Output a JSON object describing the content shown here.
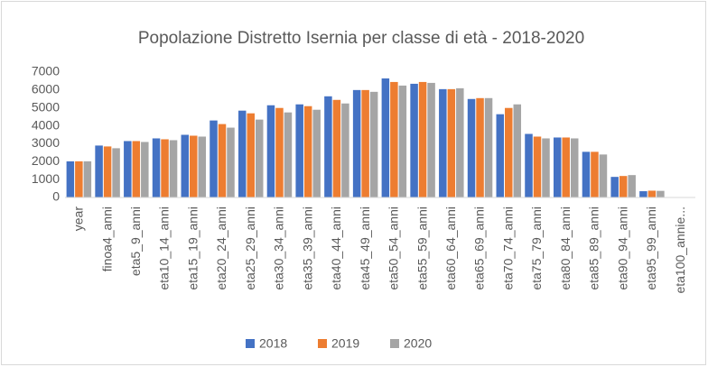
{
  "chart_data": {
    "type": "bar",
    "title": "Popolazione Distretto Isernia per classe di età - 2018-2020",
    "categories": [
      "year",
      "finoa4_anni",
      "eta5_9_anni",
      "eta10_14_anni",
      "eta15_19_anni",
      "eta20_24_anni",
      "eta25_29_anni",
      "eta30_34_anni",
      "eta35_39_anni",
      "eta40_44_anni",
      "eta45_49_anni",
      "eta50_54_anni",
      "eta55_59_anni",
      "eta60_64_anni",
      "eta65_69_anni",
      "eta70_74_anni",
      "eta75_79_anni",
      "eta80_84_anni",
      "eta85_89_anni",
      "eta90_94_anni",
      "eta95_99_anni",
      "eta100_annie..."
    ],
    "series": [
      {
        "name": "2018",
        "color": "#4472c4",
        "values": [
          2018,
          2900,
          3150,
          3300,
          3500,
          4300,
          4850,
          5150,
          5200,
          5650,
          6000,
          6650,
          6350,
          6050,
          5500,
          4650,
          3550,
          3350,
          2550,
          1150,
          350,
          20
        ]
      },
      {
        "name": "2019",
        "color": "#ed7d31",
        "values": [
          2019,
          2850,
          3150,
          3250,
          3450,
          4100,
          4700,
          5000,
          5100,
          5450,
          6000,
          6450,
          6450,
          6050,
          5550,
          5000,
          3400,
          3350,
          2550,
          1200,
          380,
          20
        ]
      },
      {
        "name": "2020",
        "color": "#a5a5a5",
        "values": [
          2020,
          2750,
          3100,
          3200,
          3400,
          3900,
          4350,
          4750,
          4900,
          5250,
          5900,
          6250,
          6400,
          6100,
          5550,
          5200,
          3300,
          3300,
          2400,
          1250,
          370,
          20
        ]
      }
    ],
    "ylim": [
      0,
      7000
    ],
    "yticks": [
      0,
      1000,
      2000,
      3000,
      4000,
      5000,
      6000,
      7000
    ],
    "grid": false,
    "legend": "bottom"
  }
}
